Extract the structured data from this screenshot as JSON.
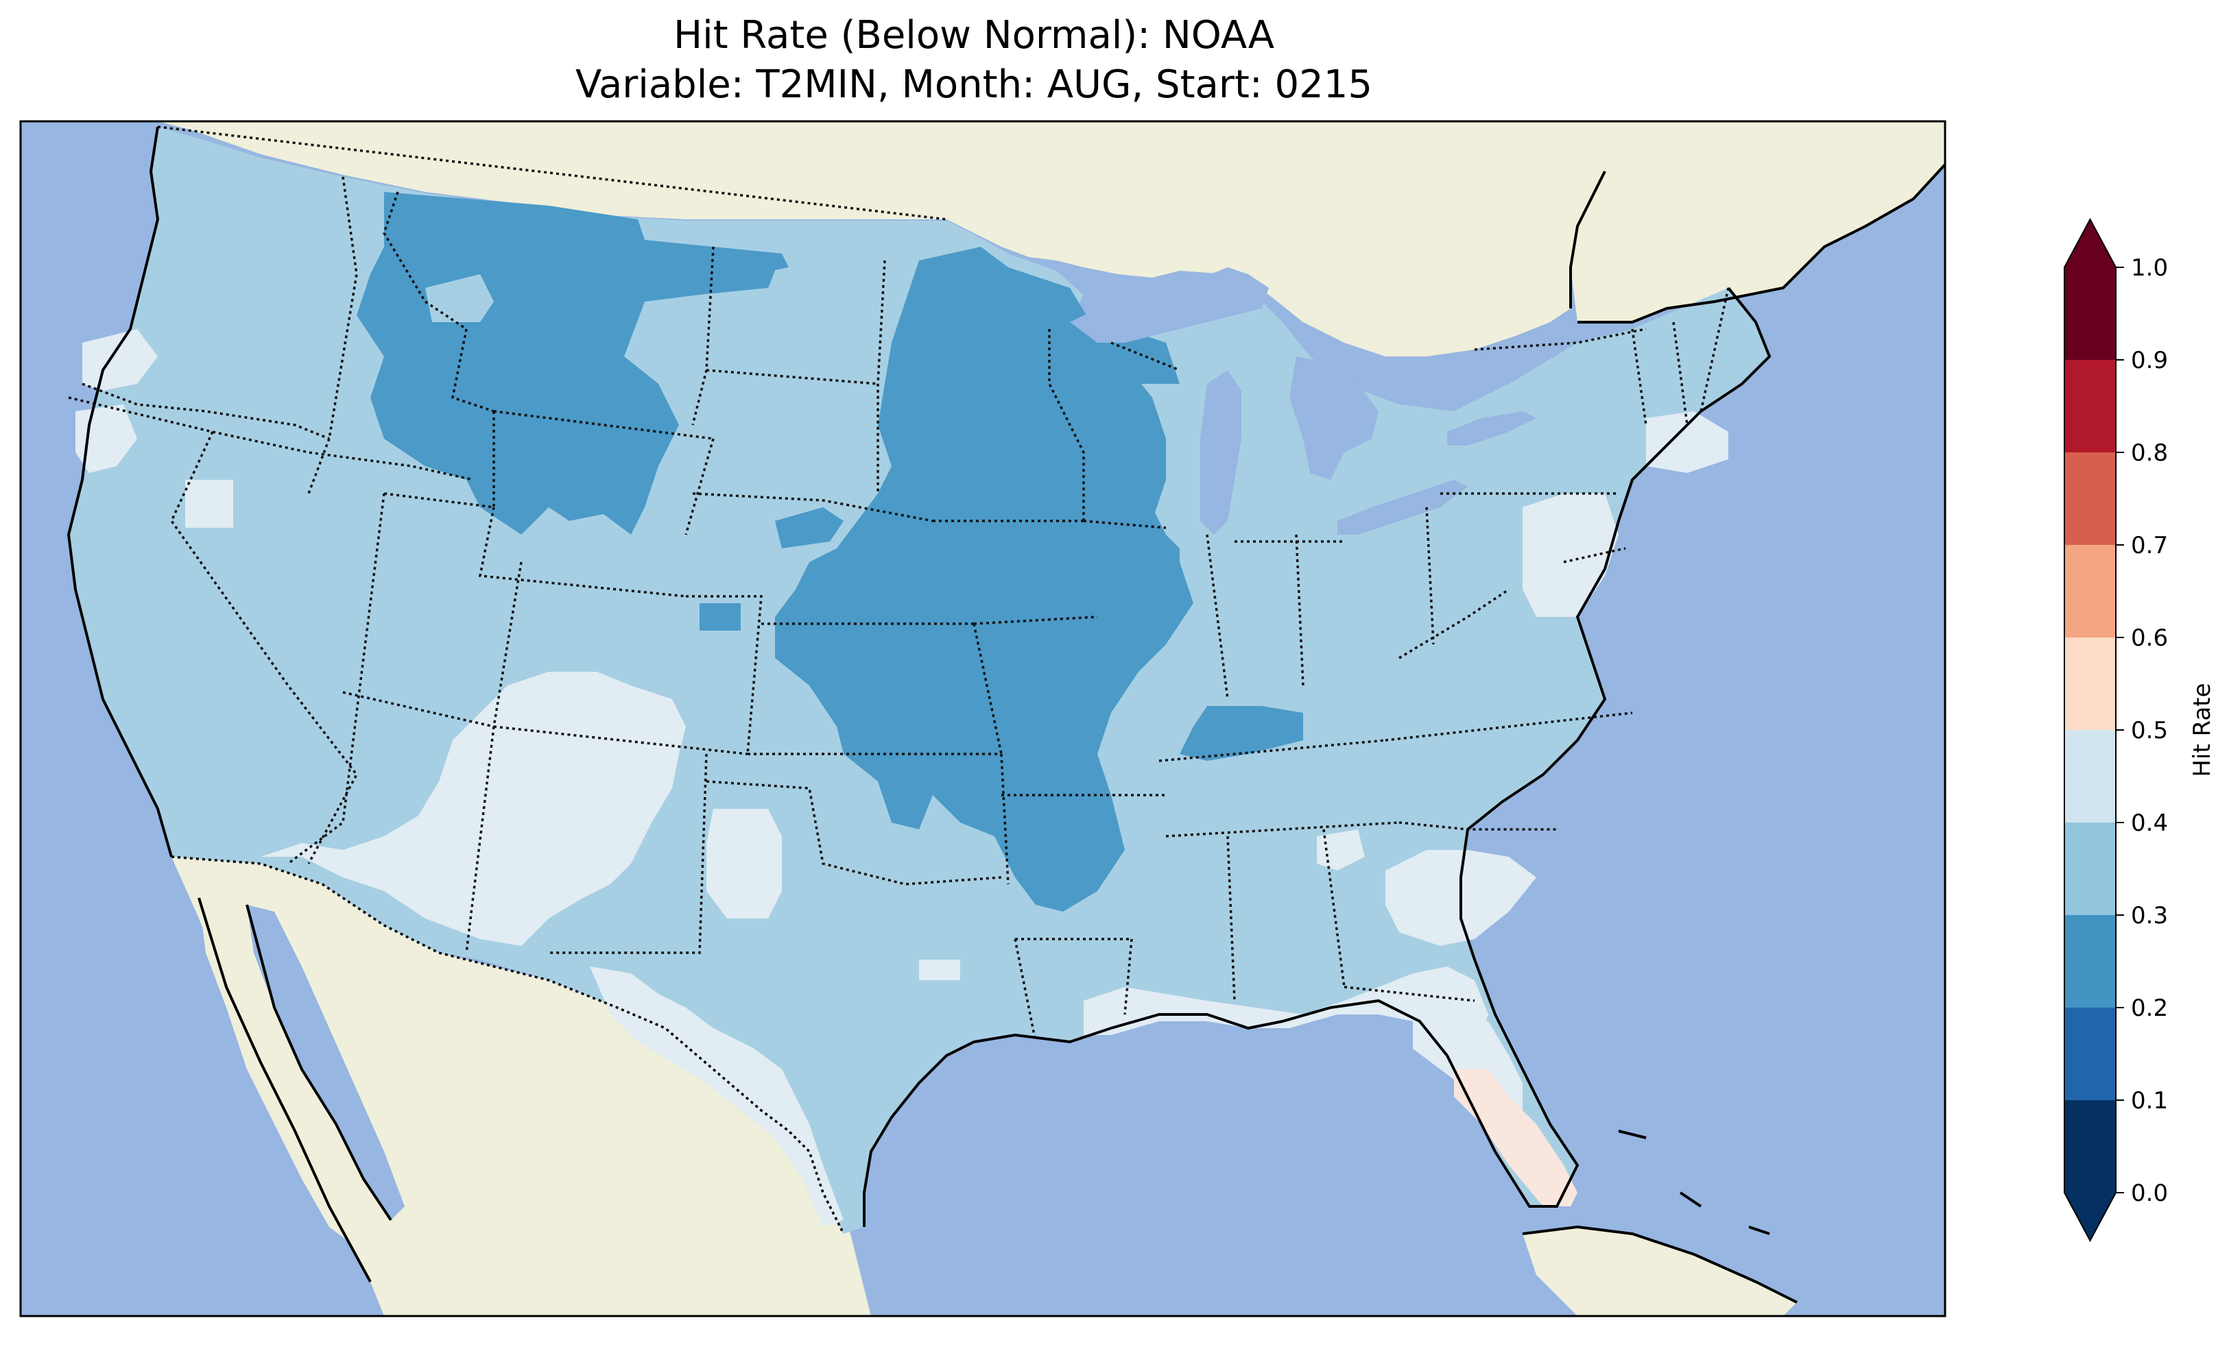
{
  "title_line1": "Hit Rate (Below Normal): NOAA",
  "title_line2": "Variable: T2MIN, Month: AUG, Start: 0215",
  "colorbar": {
    "label": "Hit Rate",
    "ticks": [
      "0.0",
      "0.1",
      "0.2",
      "0.3",
      "0.4",
      "0.5",
      "0.6",
      "0.7",
      "0.8",
      "0.9",
      "1.0"
    ],
    "bins": [
      {
        "range": [
          0.0,
          0.1
        ],
        "color": "#053061"
      },
      {
        "range": [
          0.1,
          0.2
        ],
        "color": "#2166ac"
      },
      {
        "range": [
          0.2,
          0.3
        ],
        "color": "#4393c3"
      },
      {
        "range": [
          0.3,
          0.4
        ],
        "color": "#92c5de"
      },
      {
        "range": [
          0.4,
          0.5
        ],
        "color": "#d1e5f0"
      },
      {
        "range": [
          0.5,
          0.6
        ],
        "color": "#fddbc7"
      },
      {
        "range": [
          0.6,
          0.7
        ],
        "color": "#f4a582"
      },
      {
        "range": [
          0.7,
          0.8
        ],
        "color": "#d6604d"
      },
      {
        "range": [
          0.8,
          0.9
        ],
        "color": "#b2182b"
      },
      {
        "range": [
          0.9,
          1.0
        ],
        "color": "#67001f"
      }
    ],
    "extend": "both"
  },
  "map": {
    "ocean_color": "#97b6e1",
    "land_color": "#efefdb",
    "regions": [
      {
        "region": "contiguous-us-general",
        "hit_rate_bin": [
          0.3,
          0.4
        ]
      },
      {
        "region": "montana-idaho",
        "hit_rate_bin": [
          0.2,
          0.3
        ]
      },
      {
        "region": "minnesota-iowa-nebraska-kansas-missouri-arkansas",
        "hit_rate_bin": [
          0.2,
          0.3
        ]
      },
      {
        "region": "wisconsin",
        "hit_rate_bin": [
          0.2,
          0.3
        ]
      },
      {
        "region": "kentucky-pocket",
        "hit_rate_bin": [
          0.2,
          0.3
        ]
      },
      {
        "region": "southwest-arizona-new-mexico",
        "hit_rate_bin": [
          0.4,
          0.5
        ]
      },
      {
        "region": "south-texas",
        "hit_rate_bin": [
          0.4,
          0.5
        ]
      },
      {
        "region": "west-texas",
        "hit_rate_bin": [
          0.4,
          0.5
        ]
      },
      {
        "region": "california-coast-north",
        "hit_rate_bin": [
          0.4,
          0.5
        ]
      },
      {
        "region": "mid-atlantic",
        "hit_rate_bin": [
          0.4,
          0.5
        ]
      },
      {
        "region": "southeast-georgia-carolina",
        "hit_rate_bin": [
          0.4,
          0.5
        ]
      },
      {
        "region": "gulf-coast",
        "hit_rate_bin": [
          0.4,
          0.5
        ]
      },
      {
        "region": "north-florida",
        "hit_rate_bin": [
          0.4,
          0.5
        ]
      },
      {
        "region": "south-florida",
        "hit_rate_bin": [
          0.5,
          0.6
        ]
      }
    ]
  }
}
